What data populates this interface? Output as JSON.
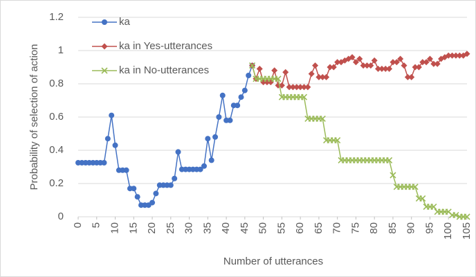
{
  "chart_data": {
    "type": "line",
    "xlabel": "Number of utterances",
    "ylabel": "Probability of selection of action",
    "x": [
      0,
      1,
      2,
      3,
      4,
      5,
      6,
      7,
      8,
      9,
      10,
      11,
      12,
      13,
      14,
      15,
      16,
      17,
      18,
      19,
      20,
      21,
      22,
      23,
      24,
      25,
      26,
      27,
      28,
      29,
      30,
      31,
      32,
      33,
      34,
      35,
      36,
      37,
      38,
      39,
      40,
      41,
      42,
      43,
      44,
      45,
      46,
      47,
      48,
      49,
      50,
      51,
      52,
      53,
      54,
      55,
      56,
      57,
      58,
      59,
      60,
      61,
      62,
      63,
      64,
      65,
      66,
      67,
      68,
      69,
      70,
      71,
      72,
      73,
      74,
      75,
      76,
      77,
      78,
      79,
      80,
      81,
      82,
      83,
      84,
      85,
      86,
      87,
      88,
      89,
      90,
      91,
      92,
      93,
      94,
      95,
      96,
      97,
      98,
      99,
      100,
      101,
      102,
      103,
      104,
      105
    ],
    "series": [
      {
        "name": "ka",
        "color": "#4472c4",
        "marker": "circle",
        "values": [
          0.325,
          0.325,
          0.325,
          0.325,
          0.325,
          0.325,
          0.325,
          0.325,
          0.47,
          0.61,
          0.43,
          0.28,
          0.28,
          0.28,
          0.17,
          0.17,
          0.12,
          0.07,
          0.07,
          0.07,
          0.085,
          0.14,
          0.19,
          0.19,
          0.19,
          0.19,
          0.23,
          0.39,
          0.285,
          0.285,
          0.285,
          0.285,
          0.285,
          0.285,
          0.305,
          0.47,
          0.34,
          0.48,
          0.6,
          0.73,
          0.58,
          0.58,
          0.67,
          0.67,
          0.72,
          0.76,
          0.85,
          0.91,
          null,
          null,
          null,
          null,
          null,
          null,
          null,
          null,
          null,
          null,
          null,
          null,
          null,
          null,
          null,
          null,
          null,
          null,
          null,
          null,
          null,
          null,
          null,
          null,
          null,
          null,
          null,
          null,
          null,
          null,
          null,
          null,
          null,
          null,
          null,
          null,
          null,
          null,
          null,
          null,
          null,
          null,
          null,
          null,
          null,
          null,
          null,
          null,
          null,
          null,
          null,
          null,
          null,
          null,
          null,
          null,
          null,
          null
        ]
      },
      {
        "name": "ka in Yes-utterances",
        "color": "#c0504d",
        "marker": "diamond",
        "values": [
          null,
          null,
          null,
          null,
          null,
          null,
          null,
          null,
          null,
          null,
          null,
          null,
          null,
          null,
          null,
          null,
          null,
          null,
          null,
          null,
          null,
          null,
          null,
          null,
          null,
          null,
          null,
          null,
          null,
          null,
          null,
          null,
          null,
          null,
          null,
          null,
          null,
          null,
          null,
          null,
          null,
          null,
          null,
          null,
          null,
          null,
          null,
          0.91,
          0.83,
          0.89,
          0.81,
          0.81,
          0.81,
          0.88,
          0.79,
          0.79,
          0.87,
          0.78,
          0.78,
          0.78,
          0.78,
          0.78,
          0.78,
          0.86,
          0.91,
          0.84,
          0.84,
          0.84,
          0.9,
          0.9,
          0.93,
          0.93,
          0.94,
          0.95,
          0.96,
          0.93,
          0.95,
          0.91,
          0.91,
          0.91,
          0.94,
          0.89,
          0.89,
          0.89,
          0.89,
          0.93,
          0.93,
          0.95,
          0.91,
          0.84,
          0.84,
          0.9,
          0.9,
          0.93,
          0.93,
          0.95,
          0.92,
          0.92,
          0.95,
          0.96,
          0.97,
          0.97,
          0.97,
          0.97,
          0.97,
          0.98
        ]
      },
      {
        "name": "ka in No-utterances",
        "color": "#9bbb59",
        "marker": "x",
        "values": [
          null,
          null,
          null,
          null,
          null,
          null,
          null,
          null,
          null,
          null,
          null,
          null,
          null,
          null,
          null,
          null,
          null,
          null,
          null,
          null,
          null,
          null,
          null,
          null,
          null,
          null,
          null,
          null,
          null,
          null,
          null,
          null,
          null,
          null,
          null,
          null,
          null,
          null,
          null,
          null,
          null,
          null,
          null,
          null,
          null,
          null,
          null,
          0.91,
          0.83,
          0.83,
          0.83,
          0.83,
          0.83,
          0.83,
          0.83,
          0.72,
          0.72,
          0.72,
          0.72,
          0.72,
          0.72,
          0.72,
          0.59,
          0.59,
          0.59,
          0.59,
          0.59,
          0.46,
          0.46,
          0.46,
          0.46,
          0.34,
          0.34,
          0.34,
          0.34,
          0.34,
          0.34,
          0.34,
          0.34,
          0.34,
          0.34,
          0.34,
          0.34,
          0.34,
          0.34,
          0.25,
          0.18,
          0.18,
          0.18,
          0.18,
          0.18,
          0.18,
          0.11,
          0.11,
          0.06,
          0.06,
          0.06,
          0.03,
          0.03,
          0.03,
          0.03,
          0.01,
          0.01,
          0,
          0,
          0
        ]
      }
    ],
    "xlim": [
      0,
      105
    ],
    "xticks": [
      0,
      5,
      10,
      15,
      20,
      25,
      30,
      35,
      40,
      45,
      50,
      55,
      60,
      65,
      70,
      75,
      80,
      85,
      90,
      95,
      100,
      105
    ],
    "ylim": [
      0,
      1.2
    ],
    "yticks": [
      0,
      0.2,
      0.4,
      0.6,
      0.8,
      1,
      1.2
    ],
    "grid": true,
    "legend": "upper left"
  }
}
